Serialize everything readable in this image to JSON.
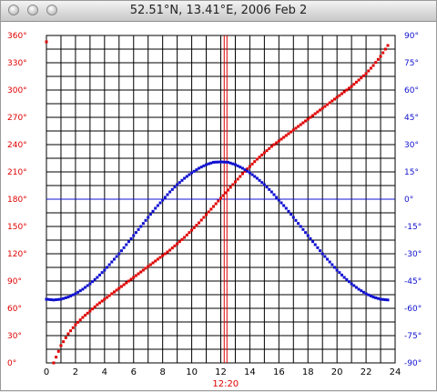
{
  "window": {
    "title": "52.51°N, 13.41°E, 2006 Feb 2"
  },
  "colors": {
    "azimuth": "#e00000",
    "elevation": "#1010d0",
    "grid": "#000000"
  },
  "icons": [
    "close-button",
    "minimize-button",
    "zoom-button"
  ],
  "chart_data": {
    "type": "scatter",
    "title": "52.51°N, 13.41°E, 2006 Feb 2",
    "x_range": [
      0,
      24
    ],
    "x_ticks": [
      "0",
      "2",
      "4",
      "6",
      "8",
      "10",
      "12",
      "14",
      "16",
      "18",
      "20",
      "22",
      "24"
    ],
    "left_axis": {
      "range": [
        0,
        360
      ],
      "ticks": [
        "0°",
        "30°",
        "60°",
        "90°",
        "120°",
        "150°",
        "180°",
        "210°",
        "240°",
        "270°",
        "300°",
        "330°",
        "360°"
      ]
    },
    "right_axis": {
      "range": [
        -90,
        90
      ],
      "ticks": [
        "-90°",
        "-75°",
        "-60°",
        "-45°",
        "-30°",
        "-15°",
        "0°",
        "15°",
        "30°",
        "45°",
        "60°",
        "75°",
        "90°"
      ]
    },
    "grid": true,
    "noon_marker": {
      "x": 12.33,
      "label": "12:20"
    },
    "series": [
      {
        "x": [
          0,
          0.5,
          1,
          1.5,
          2,
          2.5,
          3,
          3.5,
          4,
          4.5,
          5,
          5.5,
          6,
          6.5,
          7,
          7.5,
          8,
          8.5,
          9,
          9.5,
          10,
          10.5,
          11,
          11.5,
          12,
          12.5,
          13,
          13.5,
          14,
          14.5,
          15,
          15.5,
          16,
          16.5,
          17,
          17.5,
          18,
          18.5,
          19,
          19.5,
          20,
          20.5,
          21,
          21.5,
          22,
          22.5,
          23,
          23.5
        ],
        "values": [
          353,
          0,
          19,
          32,
          42,
          50,
          57,
          64,
          70,
          76,
          82,
          88,
          94,
          100,
          106,
          112,
          118,
          124,
          131,
          138,
          146,
          154,
          163,
          172,
          181,
          190,
          199,
          208,
          216,
          224,
          231,
          238,
          244,
          250,
          256,
          262,
          268,
          274,
          280,
          286,
          292,
          298,
          304,
          311,
          318,
          327,
          337,
          349
        ],
        "axis": "left"
      },
      {
        "x": [
          0,
          0.5,
          1,
          1.5,
          2,
          2.5,
          3,
          3.5,
          4,
          4.5,
          5,
          5.5,
          6,
          6.5,
          7,
          7.5,
          8,
          8.5,
          9,
          9.5,
          10,
          10.5,
          11,
          11.5,
          12,
          12.5,
          13,
          13.5,
          14,
          14.5,
          15,
          15.5,
          16,
          16.5,
          17,
          17.5,
          18,
          18.5,
          19,
          19.5,
          20,
          20.5,
          21,
          21.5,
          22,
          22.5,
          23,
          23.5
        ],
        "values": [
          -55,
          -55.4,
          -55,
          -53.8,
          -52,
          -49.5,
          -46.5,
          -43,
          -39,
          -34.5,
          -30,
          -25,
          -20,
          -15,
          -10,
          -5,
          -0.5,
          4,
          8,
          11.5,
          14.5,
          17,
          19,
          20.3,
          20.5,
          20.3,
          19,
          17,
          14.5,
          11.5,
          8,
          4,
          -0.5,
          -5,
          -10,
          -15,
          -20,
          -25,
          -30,
          -34.5,
          -39,
          -43,
          -46.5,
          -49.5,
          -52,
          -53.8,
          -55,
          -55.4
        ],
        "axis": "right"
      }
    ]
  }
}
